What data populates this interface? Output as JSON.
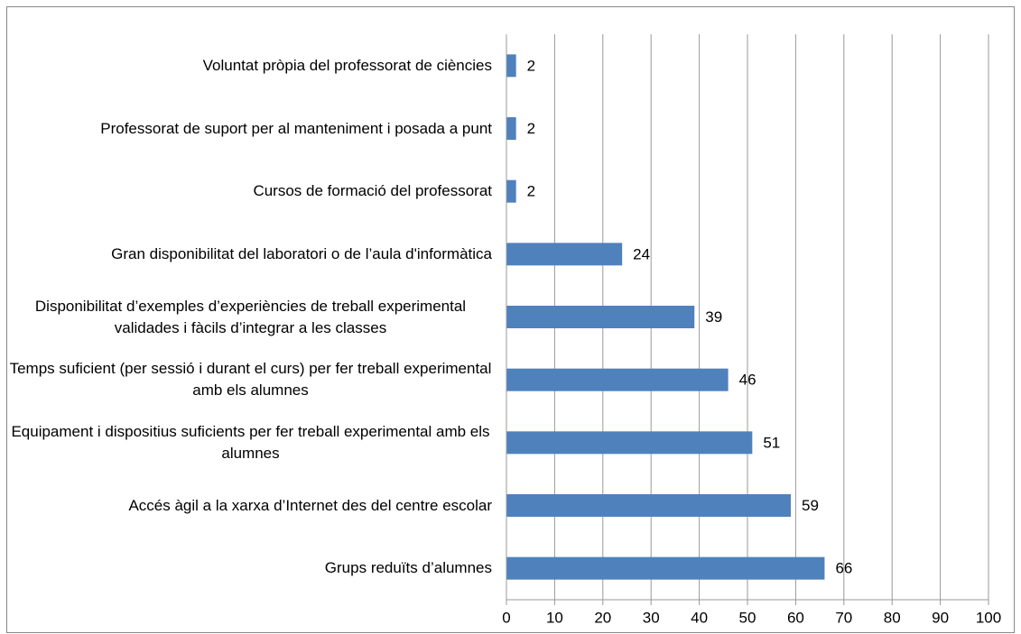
{
  "chart_data": {
    "type": "barh",
    "categories": [
      "Voluntat pròpia del professorat de ciències",
      "Professorat de suport per al manteniment i posada a punt",
      "Cursos de formació del professorat",
      "Gran disponibilitat del laboratori o de l’aula d'informàtica",
      "Disponibilitat d’exemples d’experiències de treball experimental validades i fàcils d’integrar a les classes",
      "Temps suficient (per sessió i durant el curs) per fer treball experimental amb els alumnes",
      "Equipament i dispositius suficients per fer treball experimental amb els alumnes",
      "Accés àgil a la xarxa d’Internet des del centre escolar",
      "Grups reduïts d’alumnes"
    ],
    "values": [
      2,
      2,
      2,
      24,
      39,
      46,
      51,
      59,
      66
    ],
    "color": "#4f81bd",
    "xlim": [
      0,
      100
    ],
    "xticks": [
      0,
      10,
      20,
      30,
      40,
      50,
      60,
      70,
      80,
      90,
      100
    ],
    "grid": true
  }
}
